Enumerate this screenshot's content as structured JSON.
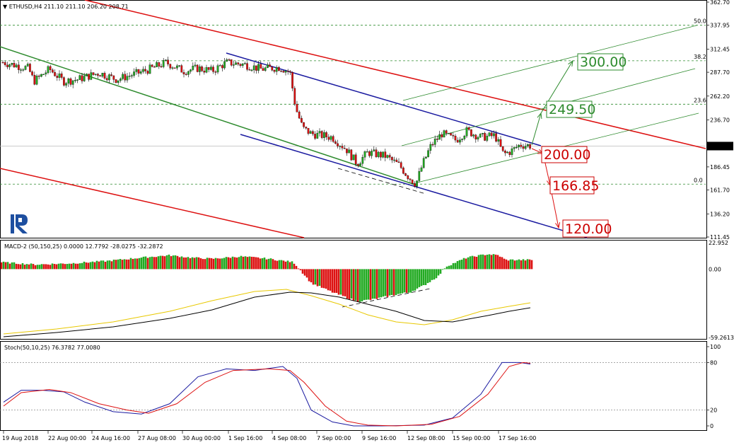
{
  "header": {
    "symbol": "ETHUSD,H4",
    "ohlc": "211.10 211.10 206.20 208.71",
    "macd": "MACD-2 (50,150,25) 0.0000 12.7792 -28.0275 -32.2872",
    "stoch": "Stoch(50,10,25) 76.3782 77.0080"
  },
  "price_axis": {
    "ticks": [
      "362.70",
      "337.95",
      "312.45",
      "287.70",
      "262.20",
      "236.70",
      "186.45",
      "161.70",
      "136.20",
      "111.45"
    ],
    "current_price": "208.71"
  },
  "macd_axis": {
    "ticks": [
      "22.952",
      "0.00",
      "-59.2613"
    ]
  },
  "stoch_axis": {
    "ticks": [
      "100",
      "80",
      "20",
      "0"
    ]
  },
  "fib_levels": [
    {
      "label": "50.0",
      "price": 337.95
    },
    {
      "label": "38.2",
      "price": 300.0
    },
    {
      "label": "23.6",
      "price": 253.5
    },
    {
      "label": "0.0",
      "price": 168.0
    }
  ],
  "targets": {
    "t300": "300.00",
    "t249": "249.50",
    "t200": "200.00",
    "t166": "166.85",
    "t120": "120.00"
  },
  "time_axis": [
    "19 Aug 2018",
    "22 Aug 00:00",
    "24 Aug 16:00",
    "27 Aug 08:00",
    "30 Aug 00:00",
    "1 Sep 16:00",
    "4 Sep 08:00",
    "7 Sep 00:00",
    "9 Sep 16:00",
    "12 Sep 08:00",
    "15 Sep 00:00",
    "17 Sep 16:00"
  ],
  "colors": {
    "bull": "#22aa22",
    "bear": "#dd1111",
    "red_line": "#dd1111",
    "blue_line": "#1a1aa0",
    "green_line": "#2e8b2e",
    "fib": "#2e8b2e",
    "signal": "#e8c800",
    "stoch_main": "#1a1aa0",
    "stoch_signal": "#dd1111"
  },
  "chart_data": {
    "type": "candlestick",
    "symbol": "ETHUSD",
    "timeframe": "H4",
    "last_ohlc": {
      "open": 211.1,
      "high": 211.1,
      "low": 206.2,
      "close": 208.71
    },
    "close_path": [
      {
        "x": "19 Aug 2018",
        "y": 299
      },
      {
        "x": "22 Aug 00:00",
        "y": 288
      },
      {
        "x": "24 Aug 16:00",
        "y": 282
      },
      {
        "x": "27 Aug 08:00",
        "y": 292
      },
      {
        "x": "30 Aug 00:00",
        "y": 290
      },
      {
        "x": "1 Sep 16:00",
        "y": 297
      },
      {
        "x": "4 Sep 08:00",
        "y": 284
      },
      {
        "x": "7 Sep 00:00",
        "y": 222
      },
      {
        "x": "9 Sep 16:00",
        "y": 198
      },
      {
        "x": "12 Sep 08:00",
        "y": 168
      },
      {
        "x": "15 Sep 00:00",
        "y": 222
      },
      {
        "x": "17 Sep 16:00",
        "y": 208.71
      }
    ],
    "price_range": [
      111.45,
      362.7
    ],
    "macd_range": [
      -59.2613,
      22.952
    ],
    "stoch_range": [
      0,
      100
    ],
    "stoch_levels": [
      20,
      80
    ]
  }
}
